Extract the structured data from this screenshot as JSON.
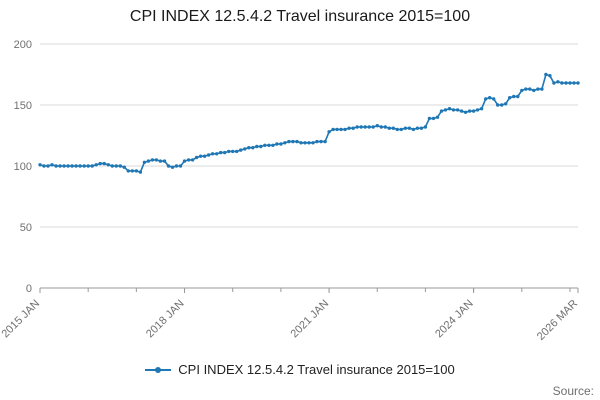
{
  "chart_data": {
    "type": "line",
    "title": "CPI INDEX 12.5.4.2 Travel insurance 2015=100",
    "legend_label": "CPI INDEX 12.5.4.2 Travel insurance 2015=100",
    "source_label": "Source:",
    "line_color": "#1f77b4",
    "grid_color": "#d9d9d9",
    "axis_color": "#9a9a9a",
    "tick_text_color": "#707070",
    "ylim": [
      0,
      200
    ],
    "y_ticks": [
      0,
      50,
      100,
      150,
      200
    ],
    "x_start": "2015 JAN",
    "frequency": "monthly",
    "x_ticks": [
      {
        "index": 0,
        "label": "2015 JAN"
      },
      {
        "index": 36,
        "label": "2018 JAN"
      },
      {
        "index": 72,
        "label": "2021 JAN"
      },
      {
        "index": 108,
        "label": "2024 JAN"
      },
      {
        "index": 134,
        "label": "2026 MAR"
      }
    ],
    "x_minor_tick_indices": [
      0,
      12,
      24,
      36,
      48,
      60,
      72,
      84,
      96,
      108,
      120,
      132,
      134
    ],
    "values": [
      101,
      100,
      100,
      101,
      100,
      100,
      100,
      100,
      100,
      100,
      100,
      100,
      100,
      100,
      101,
      102,
      102,
      101,
      100,
      100,
      100,
      99,
      96,
      96,
      96,
      95,
      103,
      104,
      105,
      105,
      104,
      104,
      100,
      99,
      100,
      100,
      104,
      105,
      105,
      107,
      108,
      108,
      109,
      110,
      110,
      111,
      111,
      112,
      112,
      112,
      113,
      114,
      115,
      115,
      116,
      116,
      117,
      117,
      117,
      118,
      118,
      119,
      120,
      120,
      120,
      119,
      119,
      119,
      119,
      120,
      120,
      120,
      128,
      130,
      130,
      130,
      130,
      131,
      131,
      132,
      132,
      132,
      132,
      132,
      133,
      132,
      132,
      131,
      131,
      130,
      130,
      131,
      131,
      130,
      131,
      131,
      132,
      139,
      139,
      140,
      145,
      146,
      147,
      146,
      146,
      145,
      144,
      145,
      145,
      146,
      147,
      155,
      156,
      155,
      150,
      150,
      151,
      156,
      157,
      157,
      162,
      163,
      163,
      162,
      163,
      163,
      175,
      174,
      168,
      169,
      168,
      168,
      168,
      168,
      168
    ]
  }
}
